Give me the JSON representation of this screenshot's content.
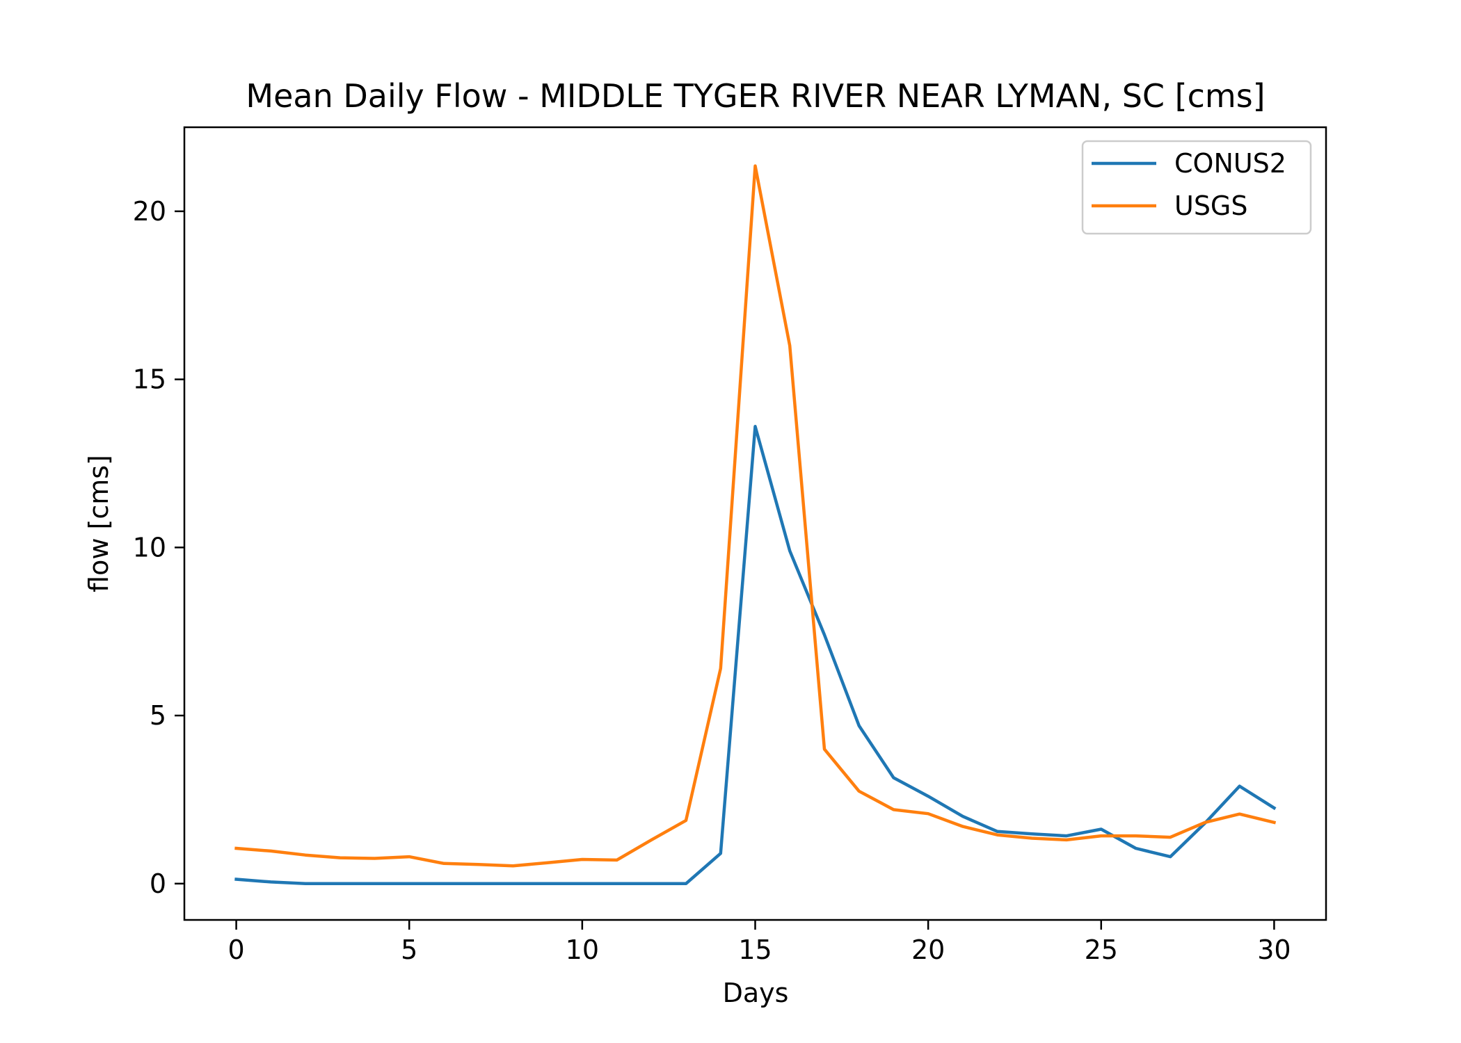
{
  "chart_data": {
    "type": "line",
    "title": "Mean Daily Flow - MIDDLE TYGER RIVER NEAR LYMAN, SC [cms]",
    "xlabel": "Days",
    "ylabel": "flow [cms]",
    "xlim": [
      -1.5,
      31.5
    ],
    "ylim": [
      -1.08,
      22.5
    ],
    "x_ticks": [
      0,
      5,
      10,
      15,
      20,
      25,
      30
    ],
    "x_tick_labels": [
      "0",
      "5",
      "10",
      "15",
      "20",
      "25",
      "30"
    ],
    "y_ticks": [
      0,
      5,
      10,
      15,
      20
    ],
    "y_tick_labels": [
      "0",
      "5",
      "10",
      "15",
      "20"
    ],
    "grid": false,
    "legend_position": "top-right",
    "x": [
      0,
      1,
      2,
      3,
      4,
      5,
      6,
      7,
      8,
      9,
      10,
      11,
      12,
      13,
      14,
      15,
      16,
      17,
      18,
      19,
      20,
      21,
      22,
      23,
      24,
      25,
      26,
      27,
      28,
      29,
      30
    ],
    "series": [
      {
        "name": "CONUS2",
        "color": "#1f77b4",
        "values": [
          0.13,
          0.05,
          0.0,
          0.0,
          0.0,
          0.0,
          0.0,
          0.0,
          0.0,
          0.0,
          0.0,
          0.0,
          0.0,
          0.0,
          0.9,
          13.6,
          9.9,
          7.4,
          4.7,
          3.15,
          2.6,
          2.0,
          1.55,
          1.48,
          1.42,
          1.62,
          1.05,
          0.8,
          1.8,
          2.9,
          2.25
        ]
      },
      {
        "name": "USGS",
        "color": "#ff7f0e",
        "values": [
          1.05,
          0.97,
          0.85,
          0.77,
          0.75,
          0.8,
          0.6,
          0.57,
          0.53,
          0.62,
          0.72,
          0.7,
          1.3,
          1.88,
          6.4,
          21.35,
          16.0,
          4.0,
          2.75,
          2.2,
          2.08,
          1.7,
          1.45,
          1.35,
          1.3,
          1.42,
          1.42,
          1.38,
          1.82,
          2.07,
          1.82
        ]
      }
    ]
  }
}
